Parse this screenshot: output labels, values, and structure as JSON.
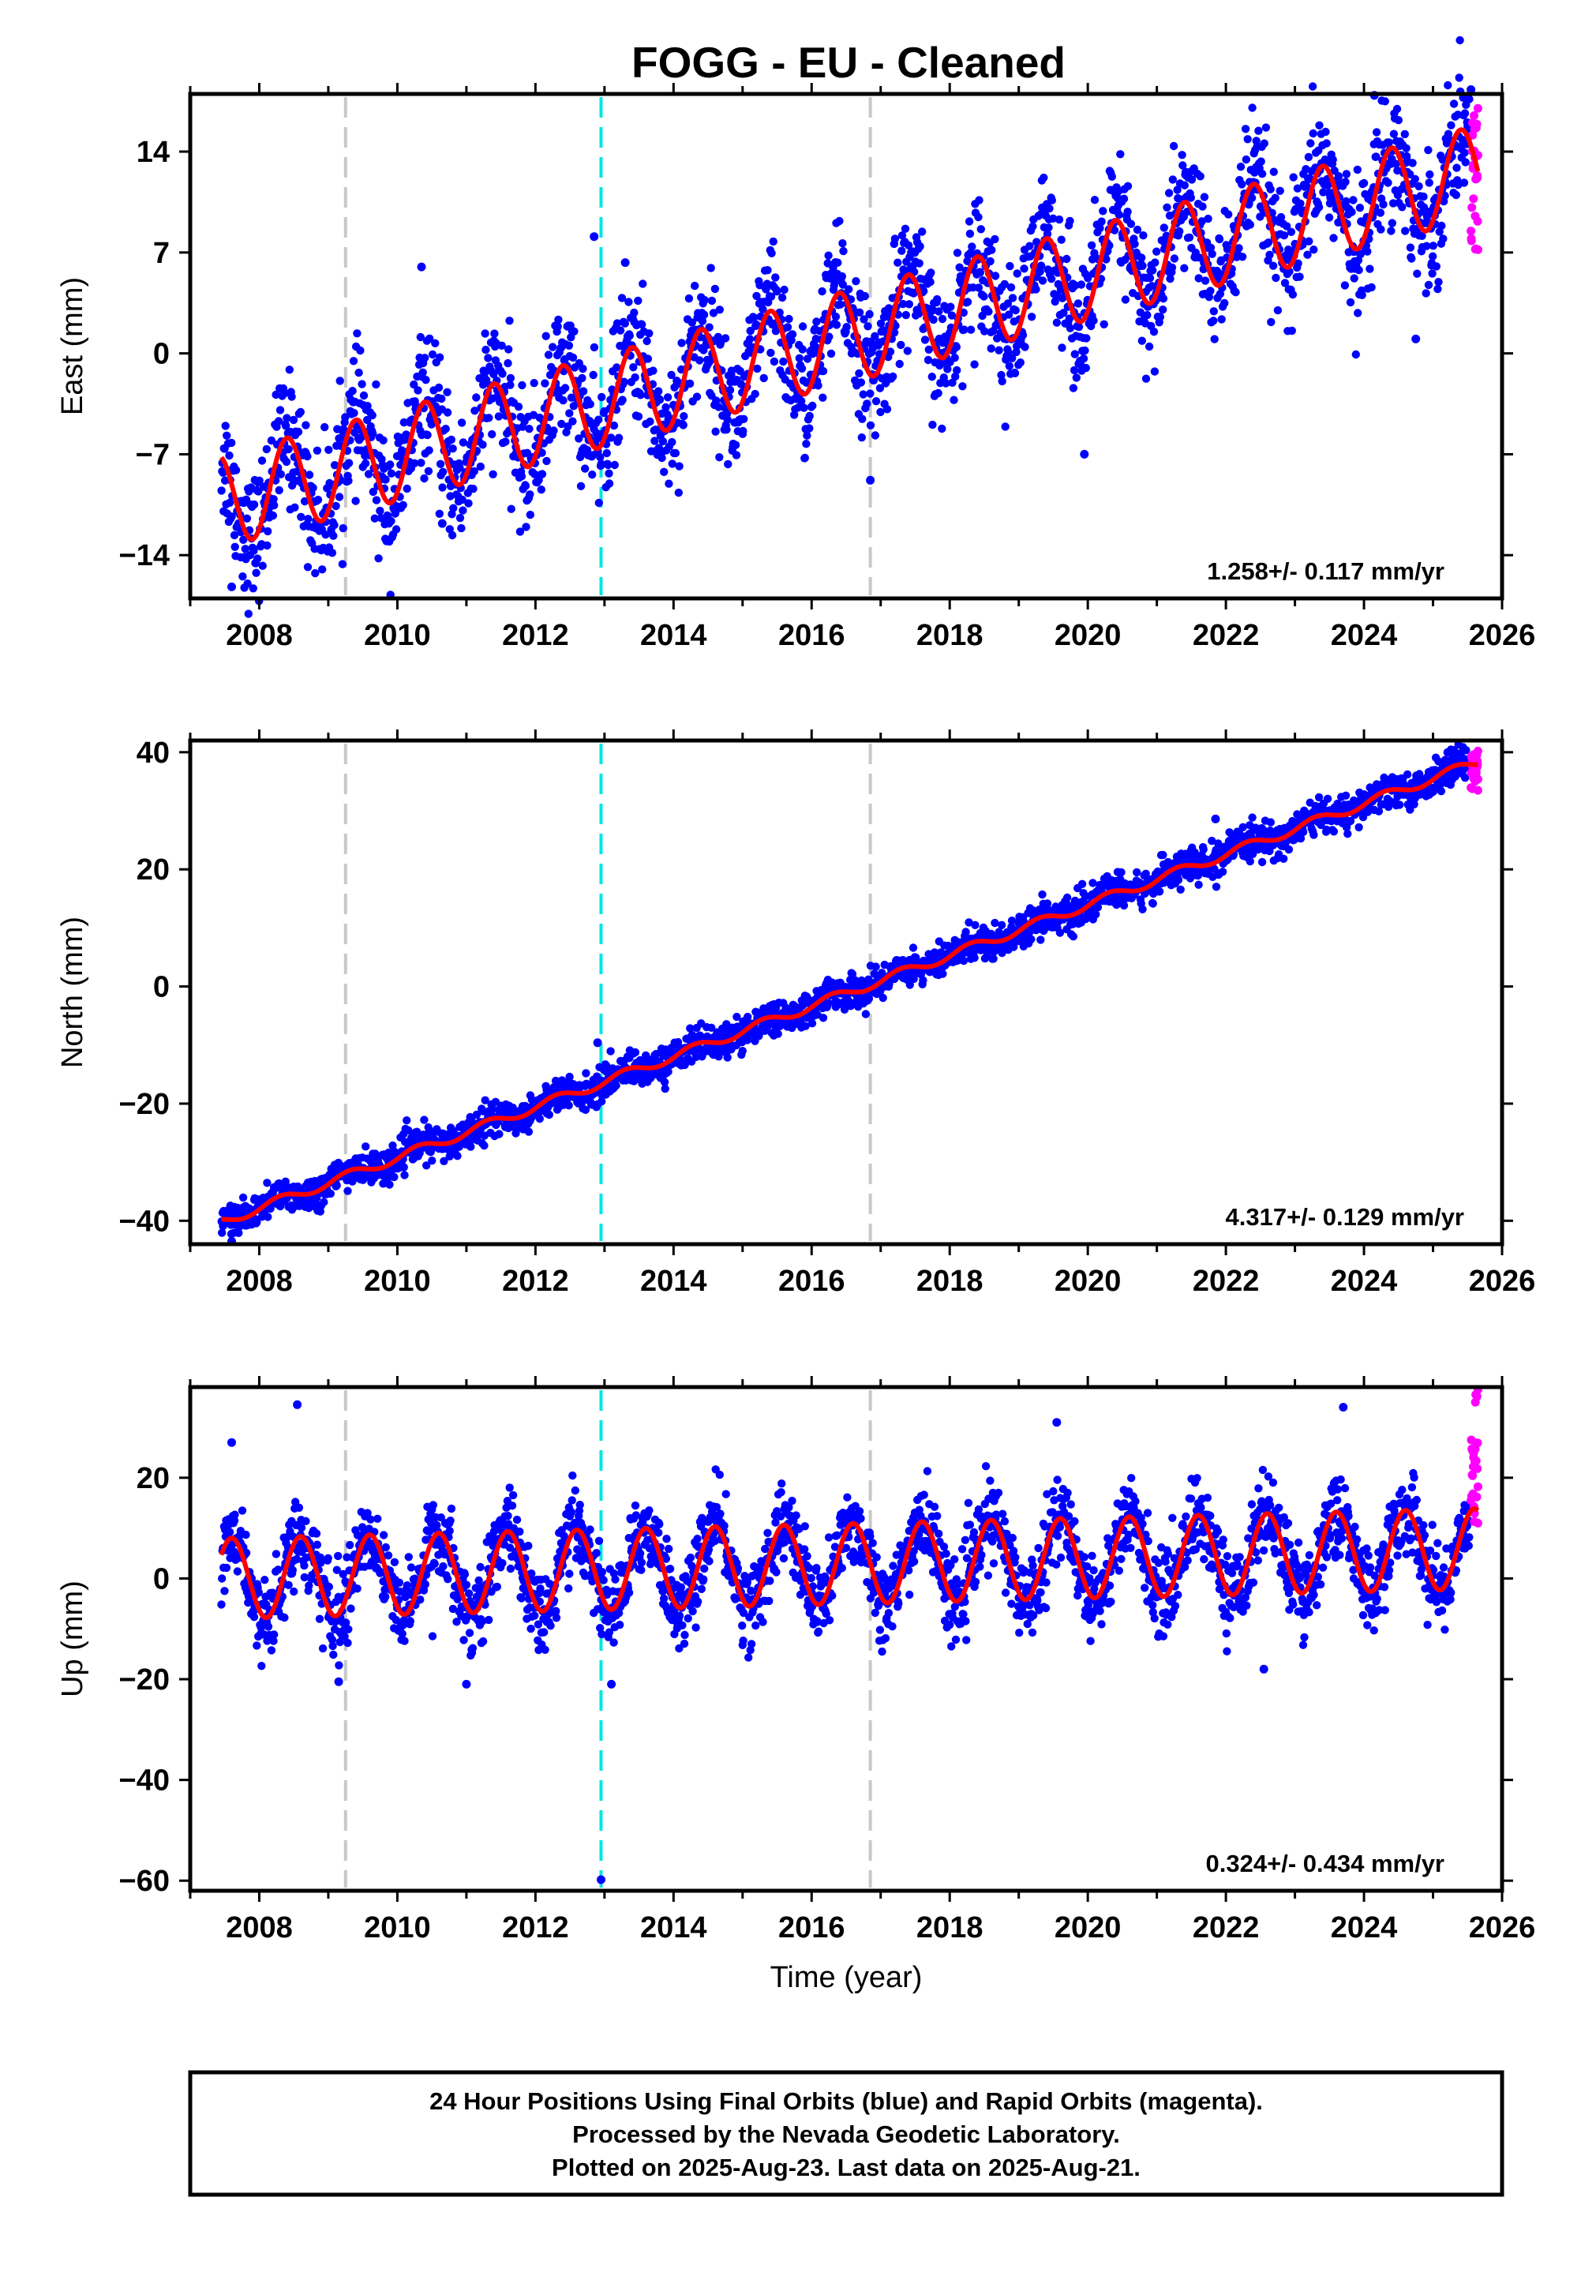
{
  "title": "FOGG  - EU - Cleaned",
  "colors": {
    "final_orbits": "#0000ff",
    "rapid_orbits": "#ff00ff",
    "model": "#ff0000",
    "equipment_change": "#c8c8c8",
    "earthquake": "#00e5e5"
  },
  "chart_data": [
    {
      "type": "scatter",
      "panel": "east",
      "ylabel": "East (mm)",
      "xlabel": "",
      "xlim": [
        2007.0,
        2026.0
      ],
      "ylim": [
        -17,
        18
      ],
      "yticks": [
        -14,
        -7,
        0,
        7,
        14
      ],
      "xticks": [
        2008,
        2010,
        2012,
        2014,
        2016,
        2018,
        2020,
        2022,
        2024,
        2026
      ],
      "rate_text": "1.258+/- 0.117 mm/yr",
      "vlines": [
        {
          "x": 2009.25,
          "kind": "equipment"
        },
        {
          "x": 2012.95,
          "kind": "earthquake"
        },
        {
          "x": 2016.85,
          "kind": "equipment"
        }
      ],
      "model": {
        "start": 2007.45,
        "end": 2025.65,
        "intercept_at_2007_5": -10.2,
        "rate": 1.258,
        "amplitude": 3.2,
        "peak_phase": 0.4
      },
      "scatter": 2.2,
      "outliers": [
        [
          2024.15,
          17.9
        ],
        [
          2025.55,
          18.3
        ],
        [
          2012.85,
          8.1
        ],
        [
          2013.3,
          6.3
        ],
        [
          2010.35,
          6.0
        ],
        [
          2019.95,
          -7.0
        ],
        [
          2024.75,
          1.0
        ],
        [
          2016.85,
          -8.8
        ],
        [
          2007.6,
          -16.2
        ],
        [
          2010.65,
          -11.8
        ]
      ],
      "rapid": {
        "start": 2025.55,
        "end": 2025.65,
        "min": 7.2,
        "max": 17.0
      }
    },
    {
      "type": "scatter",
      "panel": "north",
      "ylabel": "North (mm)",
      "xlabel": "",
      "xlim": [
        2007.0,
        2026.0
      ],
      "ylim": [
        -44,
        42
      ],
      "yticks": [
        -40,
        -20,
        0,
        20,
        40
      ],
      "xticks": [
        2008,
        2010,
        2012,
        2014,
        2016,
        2018,
        2020,
        2022,
        2024,
        2026
      ],
      "rate_text": "4.317+/- 0.129 mm/yr",
      "vlines": [
        {
          "x": 2009.25,
          "kind": "equipment"
        },
        {
          "x": 2012.95,
          "kind": "earthquake"
        },
        {
          "x": 2016.85,
          "kind": "equipment"
        }
      ],
      "model": {
        "start": 2007.45,
        "end": 2025.65,
        "intercept_at_2007_5": -40.0,
        "rate": 4.317,
        "amplitude": 0.8,
        "peak_phase": 0.3
      },
      "scatter": 1.4,
      "outliers": [
        [
          2021.85,
          28.6
        ],
        [
          2012.9,
          -9.6
        ],
        [
          2007.6,
          -43.5
        ]
      ],
      "rapid": {
        "start": 2025.55,
        "end": 2025.65,
        "min": 33.5,
        "max": 40.2
      }
    },
    {
      "type": "scatter",
      "panel": "up",
      "ylabel": "Up (mm)",
      "xlabel": "Time (year)",
      "xlim": [
        2007.0,
        2026.0
      ],
      "ylim": [
        -62,
        38
      ],
      "yticks": [
        -60,
        -40,
        -20,
        0,
        20
      ],
      "xticks": [
        2008,
        2010,
        2012,
        2014,
        2016,
        2018,
        2020,
        2022,
        2024,
        2026
      ],
      "rate_text": "0.324+/- 0.434 mm/yr",
      "vlines": [
        {
          "x": 2009.25,
          "kind": "equipment"
        },
        {
          "x": 2012.95,
          "kind": "earthquake"
        },
        {
          "x": 2016.85,
          "kind": "equipment"
        }
      ],
      "model": {
        "start": 2007.45,
        "end": 2025.65,
        "intercept_at_2007_5": 0.0,
        "rate": 0.324,
        "amplitude": 8.0,
        "peak_phase": 0.6
      },
      "scatter": 4.0,
      "outliers": [
        [
          2008.55,
          34.5
        ],
        [
          2019.55,
          31.0
        ],
        [
          2023.7,
          34.0
        ],
        [
          2012.95,
          -59.8
        ],
        [
          2013.1,
          -21.0
        ],
        [
          2009.15,
          -20.5
        ],
        [
          2011.0,
          -21.0
        ],
        [
          2022.55,
          -18.0
        ],
        [
          2007.6,
          27.0
        ]
      ],
      "rapid": {
        "start": 2025.55,
        "end": 2025.65,
        "min": 11.0,
        "max": 37.5
      }
    }
  ],
  "footer": {
    "line1": "24 Hour Positions Using Final Orbits (blue) and Rapid Orbits (magenta).",
    "line2": "Processed by the Nevada Geodetic Laboratory.",
    "line3": "Plotted on 2025-Aug-23. Last data on 2025-Aug-21."
  }
}
